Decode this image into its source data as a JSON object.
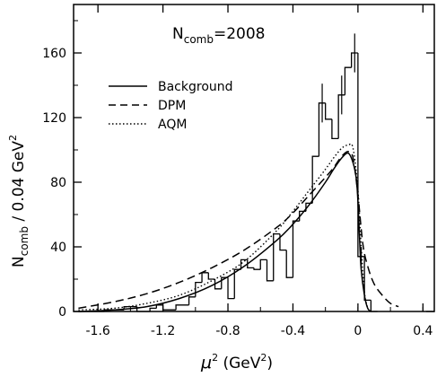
{
  "chart_data": {
    "type": "line",
    "title": "",
    "annotation": {
      "main": "N",
      "sub": "comb",
      "tail": "=2008"
    },
    "xlabel": {
      "main": "μ",
      "sup": "2",
      "tail": " (GeV",
      "sup2": "2",
      "close": ")"
    },
    "ylabel": {
      "main": "N",
      "sub": "comb",
      "tail": " / 0.04 GeV",
      "sup": "2"
    },
    "xlim": [
      -1.75,
      0.47
    ],
    "ylim": [
      0,
      190
    ],
    "x_ticks": [
      {
        "value": -1.6,
        "label": "-1.6"
      },
      {
        "value": -1.2,
        "label": "-1.2"
      },
      {
        "value": -0.8,
        "label": "-0.8"
      },
      {
        "value": -0.4,
        "label": "-0.4"
      },
      {
        "value": 0.0,
        "label": "0"
      },
      {
        "value": 0.4,
        "label": "0.4"
      }
    ],
    "y_ticks": [
      {
        "value": 0,
        "label": "0"
      },
      {
        "value": 40,
        "label": "40"
      },
      {
        "value": 80,
        "label": "80"
      },
      {
        "value": 120,
        "label": "120"
      },
      {
        "value": 160,
        "label": "160"
      }
    ],
    "legend": [
      {
        "label": "Background",
        "style": "solid"
      },
      {
        "label": "DPM",
        "style": "dashed"
      },
      {
        "label": "AQM",
        "style": "dotted"
      }
    ],
    "histogram": {
      "name": "data",
      "bins": [
        {
          "x0": -1.72,
          "x1": -1.56,
          "y": 0
        },
        {
          "x0": -1.56,
          "x1": -1.44,
          "y": 1
        },
        {
          "x0": -1.44,
          "x1": -1.36,
          "y": 3
        },
        {
          "x0": -1.36,
          "x1": -1.28,
          "y": 0
        },
        {
          "x0": -1.28,
          "x1": -1.24,
          "y": 2
        },
        {
          "x0": -1.24,
          "x1": -1.2,
          "y": 4
        },
        {
          "x0": -1.2,
          "x1": -1.12,
          "y": 1
        },
        {
          "x0": -1.12,
          "x1": -1.04,
          "y": 4
        },
        {
          "x0": -1.04,
          "x1": -1.0,
          "y": 9
        },
        {
          "x0": -1.0,
          "x1": -0.96,
          "y": 18
        },
        {
          "x0": -0.96,
          "x1": -0.92,
          "y": 24
        },
        {
          "x0": -0.92,
          "x1": -0.88,
          "y": 20
        },
        {
          "x0": -0.88,
          "x1": -0.84,
          "y": 14
        },
        {
          "x0": -0.84,
          "x1": -0.8,
          "y": 21
        },
        {
          "x0": -0.8,
          "x1": -0.76,
          "y": 8
        },
        {
          "x0": -0.76,
          "x1": -0.72,
          "y": 26
        },
        {
          "x0": -0.72,
          "x1": -0.68,
          "y": 32
        },
        {
          "x0": -0.68,
          "x1": -0.64,
          "y": 27
        },
        {
          "x0": -0.64,
          "x1": -0.6,
          "y": 26
        },
        {
          "x0": -0.6,
          "x1": -0.56,
          "y": 32
        },
        {
          "x0": -0.56,
          "x1": -0.52,
          "y": 19
        },
        {
          "x0": -0.52,
          "x1": -0.48,
          "y": 48
        },
        {
          "x0": -0.48,
          "x1": -0.44,
          "y": 38
        },
        {
          "x0": -0.44,
          "x1": -0.4,
          "y": 21
        },
        {
          "x0": -0.4,
          "x1": -0.36,
          "y": 56
        },
        {
          "x0": -0.36,
          "x1": -0.32,
          "y": 62
        },
        {
          "x0": -0.32,
          "x1": -0.28,
          "y": 67
        },
        {
          "x0": -0.28,
          "x1": -0.24,
          "y": 96
        },
        {
          "x0": -0.24,
          "x1": -0.2,
          "y": 129
        },
        {
          "x0": -0.2,
          "x1": -0.16,
          "y": 119
        },
        {
          "x0": -0.16,
          "x1": -0.12,
          "y": 107
        },
        {
          "x0": -0.12,
          "x1": -0.08,
          "y": 134
        },
        {
          "x0": -0.08,
          "x1": -0.04,
          "y": 151
        },
        {
          "x0": -0.04,
          "x1": 0.0,
          "y": 160
        },
        {
          "x0": 0.0,
          "x1": 0.04,
          "y": 34
        },
        {
          "x0": 0.04,
          "x1": 0.08,
          "y": 7
        },
        {
          "x0": 0.08,
          "x1": 0.12,
          "y": 0
        }
      ],
      "error_bars": [
        {
          "x": -0.22,
          "y": 129,
          "err": 12
        },
        {
          "x": -0.1,
          "y": 134,
          "err": 12
        },
        {
          "x": -0.02,
          "y": 160,
          "err": 12
        },
        {
          "x": 0.02,
          "y": 34,
          "err": 6
        }
      ]
    },
    "series": [
      {
        "name": "Background",
        "style": "solid",
        "x": [
          -1.72,
          -1.5,
          -1.3,
          -1.1,
          -0.9,
          -0.7,
          -0.5,
          -0.4,
          -0.3,
          -0.2,
          -0.15,
          -0.1,
          -0.06,
          -0.03,
          -0.01,
          0.0,
          0.01,
          0.02,
          0.04,
          0.06,
          0.08
        ],
        "y": [
          0,
          1,
          3,
          8,
          16,
          28,
          44,
          54,
          66,
          80,
          88,
          95,
          98,
          92,
          82,
          68,
          45,
          26,
          10,
          2,
          0
        ]
      },
      {
        "name": "DPM",
        "style": "dashed",
        "x": [
          -1.72,
          -1.5,
          -1.3,
          -1.1,
          -0.9,
          -0.7,
          -0.5,
          -0.4,
          -0.3,
          -0.2,
          -0.15,
          -0.1,
          -0.06,
          -0.03,
          0.0,
          0.03,
          0.06,
          0.1,
          0.15,
          0.2,
          0.25
        ],
        "y": [
          2,
          6,
          11,
          18,
          27,
          38,
          52,
          61,
          72,
          83,
          89,
          96,
          99,
          95,
          72,
          42,
          28,
          17,
          10,
          5,
          3
        ]
      },
      {
        "name": "AQM",
        "style": "dotted",
        "x": [
          -1.72,
          -1.5,
          -1.3,
          -1.1,
          -0.9,
          -0.7,
          -0.5,
          -0.4,
          -0.3,
          -0.2,
          -0.15,
          -0.1,
          -0.06,
          -0.03,
          0.0,
          0.02,
          0.04,
          0.06
        ],
        "y": [
          1,
          2,
          5,
          10,
          19,
          31,
          50,
          62,
          75,
          88,
          95,
          101,
          103,
          101,
          75,
          40,
          12,
          2
        ]
      }
    ]
  }
}
